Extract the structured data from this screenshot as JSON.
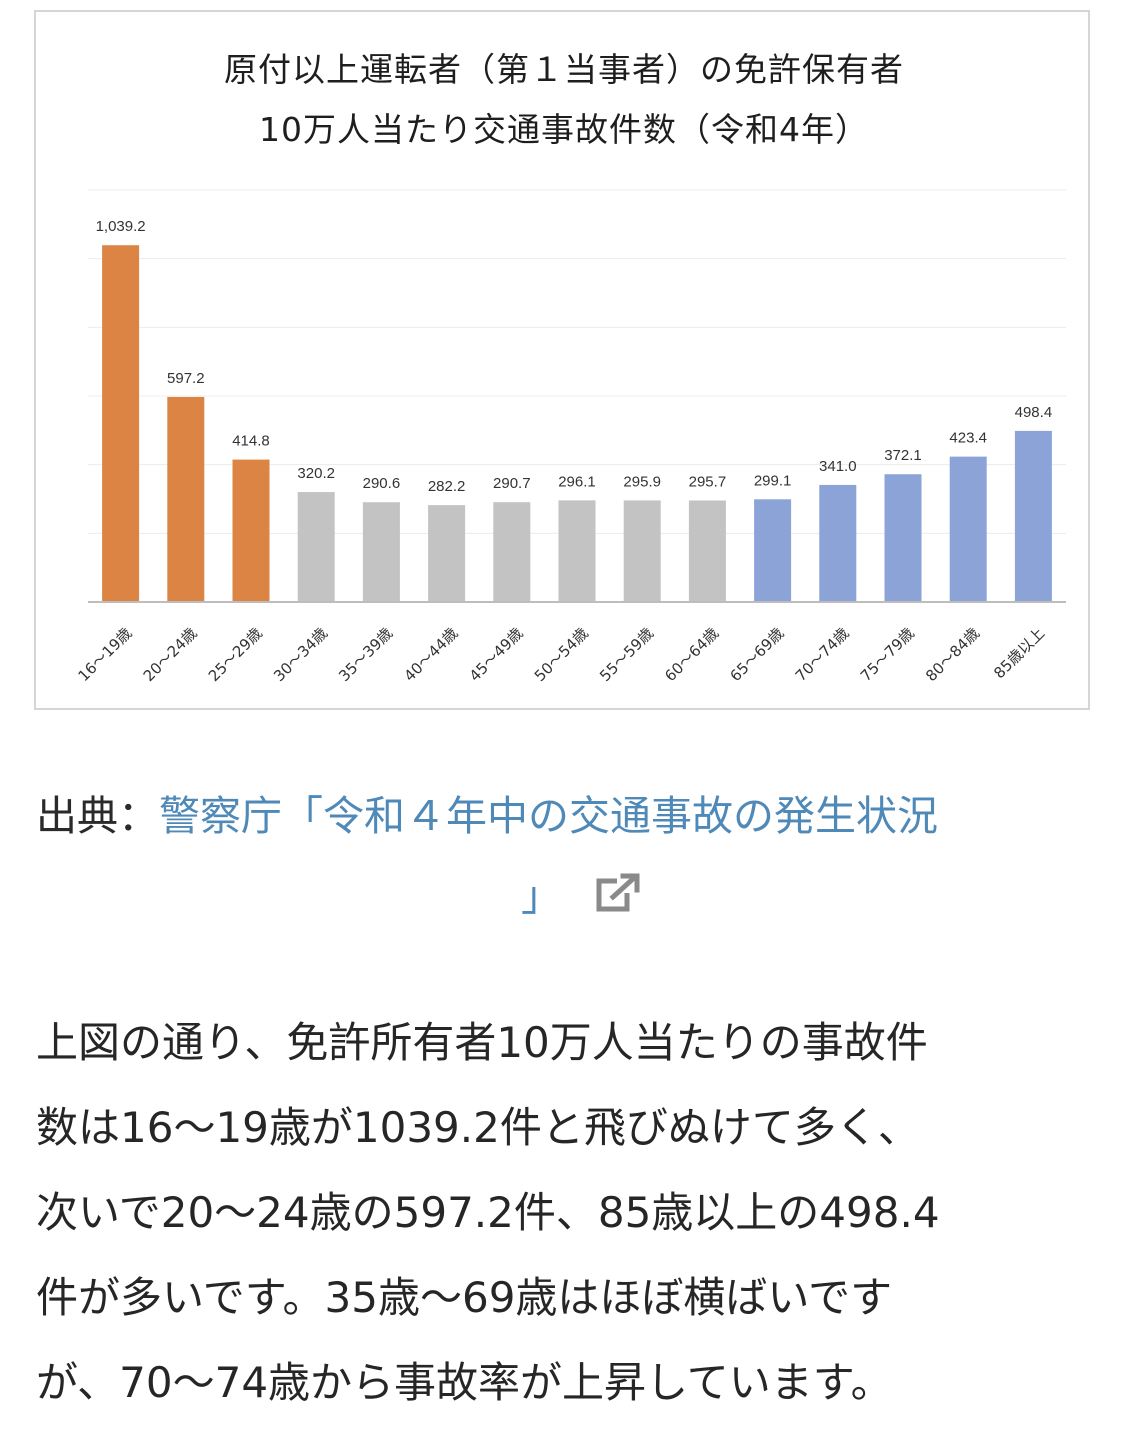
{
  "chart_data": {
    "type": "bar",
    "title": "原付以上運転者（第１当事者）の免許保有者",
    "subtitle": "10万人当たり交通事故件数（令和4年）",
    "categories": [
      "16～19歳",
      "20～24歳",
      "25～29歳",
      "30～34歳",
      "35～39歳",
      "40～44歳",
      "45～49歳",
      "50～54歳",
      "55～59歳",
      "60～64歳",
      "65～69歳",
      "70～74歳",
      "75～79歳",
      "80～84歳",
      "85歳以上"
    ],
    "values": [
      1039.2,
      597.2,
      414.8,
      320.2,
      290.6,
      282.2,
      290.7,
      296.1,
      295.9,
      295.7,
      299.1,
      341.0,
      372.1,
      423.4,
      498.4
    ],
    "value_labels": [
      "1,039.2",
      "597.2",
      "414.8",
      "320.2",
      "290.6",
      "282.2",
      "290.7",
      "296.1",
      "295.9",
      "295.7",
      "299.1",
      "341.0",
      "372.1",
      "423.4",
      "498.4"
    ],
    "bar_colors": [
      "#dc8443",
      "#dc8443",
      "#dc8443",
      "#c3c3c3",
      "#c3c3c3",
      "#c3c3c3",
      "#c3c3c3",
      "#c3c3c3",
      "#c3c3c3",
      "#c3c3c3",
      "#8ba3d6",
      "#8ba3d6",
      "#8ba3d6",
      "#8ba3d6",
      "#8ba3d6"
    ],
    "ylim": [
      0,
      1200
    ],
    "grid": true,
    "xlabel": "",
    "ylabel": ""
  },
  "source": {
    "prefix": "出典：",
    "link_line1": "警察庁「令和４年中の交通事故の発生状況",
    "link_line2": "」",
    "icon": "external-link-icon",
    "link_color": "#4f89b8"
  },
  "body_lines": [
    "上図の通り、免許所有者10万人当たりの事故件",
    "数は16～19歳が1039.2件と飛びぬけて多く、",
    "次いで20～24歳の597.2件、85歳以上の498.4",
    "件が多いです。35歳～69歳はほぼ横ばいです",
    "が、70～74歳から事故率が上昇しています。"
  ]
}
